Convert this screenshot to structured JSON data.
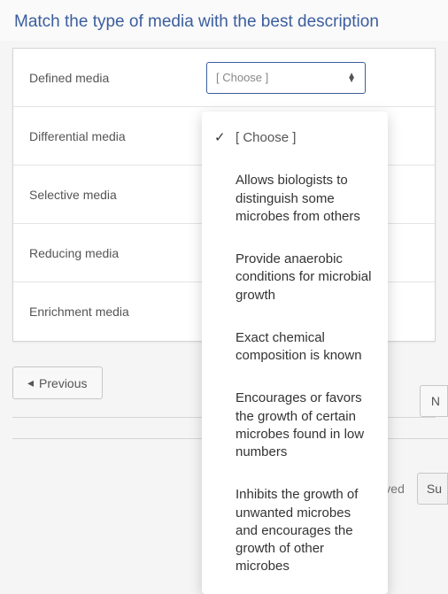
{
  "question": {
    "title": "Match the type of media with the best description"
  },
  "rows": [
    {
      "label": "Defined media"
    },
    {
      "label": "Differential media"
    },
    {
      "label": "Selective media"
    },
    {
      "label": "Reducing media"
    },
    {
      "label": "Enrichment media"
    }
  ],
  "select": {
    "placeholder": "[ Choose ]"
  },
  "dropdown": {
    "options": [
      {
        "text": "[ Choose ]",
        "selected": true,
        "placeholder": true
      },
      {
        "text": "Allows biologists to distinguish some microbes from others",
        "selected": false
      },
      {
        "text": "Provide anaerobic conditions for microbial growth",
        "selected": false
      },
      {
        "text": "Exact chemical composition is known",
        "selected": false
      },
      {
        "text": "Encourages or favors the growth of certain microbes found in low numbers",
        "selected": false
      },
      {
        "text": "Inhibits the growth of unwanted microbes and encourages the growth of other microbes",
        "selected": false
      }
    ]
  },
  "nav": {
    "previous": "Previous",
    "next": "N",
    "saved": "aved",
    "submit": "Su"
  }
}
